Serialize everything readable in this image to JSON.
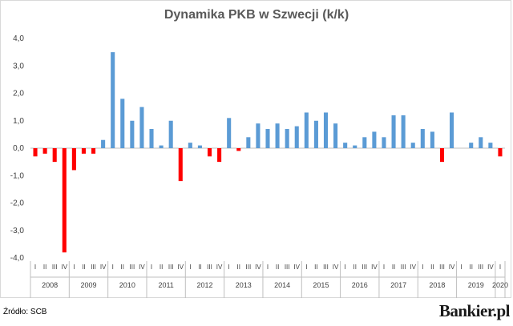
{
  "chart_data": {
    "type": "bar",
    "title": "Dynamika PKB w Szwecji (k/k)",
    "xlabel": "",
    "ylabel": "",
    "ylim": [
      -4.0,
      4.0
    ],
    "yticks": [
      "4,0",
      "3,0",
      "2,0",
      "1,0",
      "0,0",
      "-1,0",
      "-2,0",
      "-3,0",
      "-4,0"
    ],
    "ytick_values": [
      4,
      3,
      2,
      1,
      0,
      -1,
      -2,
      -3,
      -4
    ],
    "positive_color": "#5b9bd5",
    "negative_color": "#ff0000",
    "grid": false,
    "legend": "none",
    "years": [
      {
        "label": "2008",
        "quarters": [
          "I",
          "II",
          "III",
          "IV"
        ],
        "values": [
          -0.3,
          -0.2,
          -0.5,
          -3.8
        ]
      },
      {
        "label": "2009",
        "quarters": [
          "I",
          "II",
          "III",
          "IV"
        ],
        "values": [
          -0.8,
          -0.2,
          -0.2,
          0.3
        ]
      },
      {
        "label": "2010",
        "quarters": [
          "I",
          "II",
          "III",
          "IV"
        ],
        "values": [
          3.5,
          1.8,
          1.0,
          1.5
        ]
      },
      {
        "label": "2011",
        "quarters": [
          "I",
          "II",
          "III",
          "IV"
        ],
        "values": [
          0.7,
          0.1,
          1.0,
          -1.2
        ]
      },
      {
        "label": "2012",
        "quarters": [
          "I",
          "II",
          "III",
          "IV"
        ],
        "values": [
          0.2,
          0.1,
          -0.3,
          -0.5
        ]
      },
      {
        "label": "2013",
        "quarters": [
          "I",
          "II",
          "III",
          "IV"
        ],
        "values": [
          1.1,
          -0.1,
          0.4,
          0.9
        ]
      },
      {
        "label": "2014",
        "quarters": [
          "I",
          "II",
          "III",
          "IV"
        ],
        "values": [
          0.7,
          0.9,
          0.7,
          0.8
        ]
      },
      {
        "label": "2015",
        "quarters": [
          "I",
          "II",
          "III",
          "IV"
        ],
        "values": [
          1.3,
          1.0,
          1.3,
          0.9
        ]
      },
      {
        "label": "2016",
        "quarters": [
          "I",
          "II",
          "III",
          "IV"
        ],
        "values": [
          0.2,
          0.1,
          0.4,
          0.6
        ]
      },
      {
        "label": "2017",
        "quarters": [
          "I",
          "II",
          "III",
          "IV"
        ],
        "values": [
          0.4,
          1.2,
          1.2,
          0.2
        ]
      },
      {
        "label": "2018",
        "quarters": [
          "I",
          "II",
          "III",
          "IV"
        ],
        "values": [
          0.7,
          0.6,
          -0.5,
          1.3
        ]
      },
      {
        "label": "2019",
        "quarters": [
          "I",
          "II",
          "III",
          "IV"
        ],
        "values": [
          0.0,
          0.2,
          0.4,
          0.2
        ]
      },
      {
        "label": "2020",
        "quarters": [
          "I"
        ],
        "values": [
          -0.3
        ]
      }
    ]
  },
  "footer": {
    "source": "Źródło: SCB",
    "brand": "Bankier.pl"
  }
}
